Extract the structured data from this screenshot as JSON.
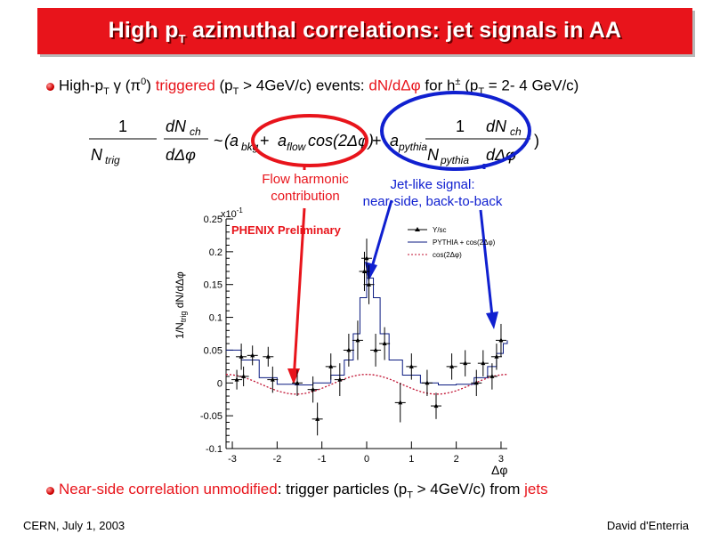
{
  "title": {
    "prefix": "High p",
    "sub": "T",
    "suffix": " azimuthal correlations: jet signals in AA"
  },
  "bullet1": {
    "a": "High-p",
    "a_sub": "T",
    "b": " γ (π",
    "b_sup": "0",
    "c": ") ",
    "d": "triggered",
    "e": " (p",
    "e_sub": "T",
    "f": " > 4GeV/c) events:  ",
    "g": "dN/dΔφ",
    "h": " for h",
    "h_sup": "±",
    "i": " (p",
    "i_sub": "T",
    "j": " = 2- 4 GeV/c)"
  },
  "formula": {
    "one": "1",
    "dnch": "dN",
    "ch": "ch",
    "ntrig": "N",
    "trig": "trig",
    "ddphi": "dΔφ",
    "tilde": "~",
    "open": "(a",
    "bkg": "bkg",
    "plus1": " + ",
    "aflow": "a",
    "flow": "flow",
    "cos": " cos(2Δφ)",
    "plus2": " + ",
    "apythia": "a",
    "pythia": "pythia",
    "npythia": "N",
    "close": ")"
  },
  "annotations": {
    "flow_line1": "Flow harmonic",
    "flow_line2": "contribution",
    "jet_line1": "Jet-like signal:",
    "jet_line2": "near-side, back-to-back"
  },
  "bullet2": {
    "a": "Near-side correlation unmodified",
    "b": ": trigger particles (p",
    "b_sub": "T",
    "c": " > 4GeV/c) from ",
    "d": "jets"
  },
  "footer": {
    "left": "CERN, July 1, 2003",
    "right": "David d'Enterria"
  },
  "chart_data": {
    "type": "scatter",
    "ylabel": "1/N",
    "ylabel_sub": "trig",
    "ylabel_tail": " dN/dΔφ",
    "xlabel": "Δφ",
    "scale_label": "x10",
    "scale_exp": "-1",
    "overlay_label": "PHENIX Preliminary",
    "xlim": [
      -3.14,
      3.14
    ],
    "ylim": [
      -0.1,
      0.25
    ],
    "x_ticks": [
      "-3",
      "-2",
      "-1",
      "0",
      "1",
      "2",
      "3"
    ],
    "y_ticks": [
      "-0.1",
      "-0.05",
      "0",
      "0.05",
      "0.1",
      "0.15",
      "0.2",
      "0.25"
    ],
    "legend": [
      "Y/sc",
      "PYTHIA + cos(2Δφ)",
      "cos(2Δφ)"
    ],
    "points": [
      {
        "x": -2.9,
        "y": 0.005,
        "e": 0.015
      },
      {
        "x": -2.8,
        "y": 0.04,
        "e": 0.02
      },
      {
        "x": -2.75,
        "y": 0.01,
        "e": 0.015
      },
      {
        "x": -2.55,
        "y": 0.042,
        "e": 0.015
      },
      {
        "x": -2.2,
        "y": 0.04,
        "e": 0.015
      },
      {
        "x": -2.1,
        "y": 0.005,
        "e": 0.02
      },
      {
        "x": -1.55,
        "y": 0.0,
        "e": 0.02
      },
      {
        "x": -1.2,
        "y": -0.01,
        "e": 0.02
      },
      {
        "x": -1.1,
        "y": -0.055,
        "e": 0.025
      },
      {
        "x": -0.8,
        "y": 0.025,
        "e": 0.02
      },
      {
        "x": -0.6,
        "y": 0.005,
        "e": 0.025
      },
      {
        "x": -0.4,
        "y": 0.05,
        "e": 0.025
      },
      {
        "x": -0.2,
        "y": 0.065,
        "e": 0.03
      },
      {
        "x": -0.05,
        "y": 0.17,
        "e": 0.03
      },
      {
        "x": 0.0,
        "y": 0.19,
        "e": 0.03
      },
      {
        "x": 0.05,
        "y": 0.15,
        "e": 0.03
      },
      {
        "x": 0.2,
        "y": 0.05,
        "e": 0.025
      },
      {
        "x": 0.4,
        "y": 0.06,
        "e": 0.025
      },
      {
        "x": 0.75,
        "y": -0.03,
        "e": 0.03
      },
      {
        "x": 1.0,
        "y": 0.025,
        "e": 0.02
      },
      {
        "x": 1.35,
        "y": 0.0,
        "e": 0.02
      },
      {
        "x": 1.55,
        "y": -0.035,
        "e": 0.02
      },
      {
        "x": 1.9,
        "y": 0.025,
        "e": 0.02
      },
      {
        "x": 2.2,
        "y": 0.03,
        "e": 0.02
      },
      {
        "x": 2.45,
        "y": 0.0,
        "e": 0.02
      },
      {
        "x": 2.6,
        "y": 0.03,
        "e": 0.02
      },
      {
        "x": 2.8,
        "y": 0.01,
        "e": 0.02
      },
      {
        "x": 2.9,
        "y": 0.04,
        "e": 0.02
      },
      {
        "x": 3.0,
        "y": 0.065,
        "e": 0.025
      }
    ],
    "pythia_curve": {
      "x": [
        -3.14,
        -2.8,
        -2.4,
        -2.0,
        -1.6,
        -1.2,
        -0.8,
        -0.5,
        -0.3,
        -0.15,
        0.0,
        0.15,
        0.3,
        0.5,
        0.8,
        1.2,
        1.6,
        2.0,
        2.4,
        2.7,
        2.9,
        3.05,
        3.14
      ],
      "y": [
        0.05,
        0.035,
        0.008,
        -0.002,
        -0.003,
        0.0,
        0.012,
        0.035,
        0.075,
        0.13,
        0.16,
        0.13,
        0.075,
        0.035,
        0.012,
        0.0,
        -0.003,
        -0.002,
        0.008,
        0.025,
        0.045,
        0.06,
        0.065
      ]
    },
    "cos_curve": {
      "amplitude": 0.015
    }
  }
}
